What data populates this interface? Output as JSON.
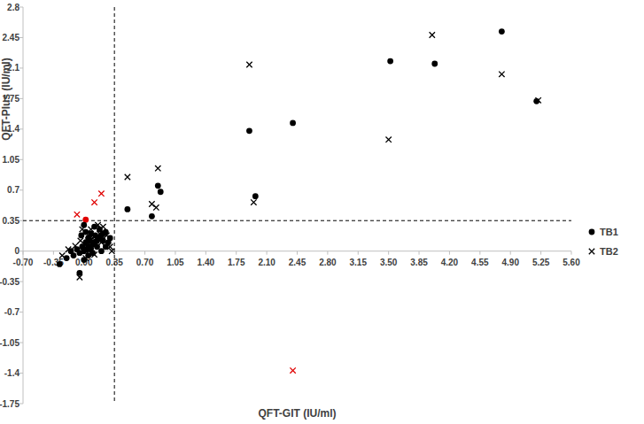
{
  "chart_data": {
    "type": "scatter",
    "x_label": "QFT-GIT (IU/ml)",
    "y_label": "QFT-Plus (IU/ml)",
    "xlim": [
      -0.7,
      5.6
    ],
    "ylim": [
      -1.75,
      2.8
    ],
    "xticks": [
      {
        "value": -0.7,
        "label": "-0.70"
      },
      {
        "value": -0.35,
        "label": "-0.35"
      },
      {
        "value": 0,
        "label": "0.00"
      },
      {
        "value": 0.35,
        "label": "0.35"
      },
      {
        "value": 0.7,
        "label": "0.70"
      },
      {
        "value": 1.05,
        "label": "1.05"
      },
      {
        "value": 1.4,
        "label": "1.40"
      },
      {
        "value": 1.75,
        "label": "1.75"
      },
      {
        "value": 2.1,
        "label": "2.10"
      },
      {
        "value": 2.45,
        "label": "2.45"
      },
      {
        "value": 2.8,
        "label": "2.80"
      },
      {
        "value": 3.15,
        "label": "3.15"
      },
      {
        "value": 3.5,
        "label": "3.50"
      },
      {
        "value": 3.85,
        "label": "3.85"
      },
      {
        "value": 4.2,
        "label": "4.20"
      },
      {
        "value": 4.55,
        "label": "4.55"
      },
      {
        "value": 4.9,
        "label": "4.90"
      },
      {
        "value": 5.25,
        "label": "5.25"
      },
      {
        "value": 5.6,
        "label": "5.60"
      }
    ],
    "yticks": [
      -1.75,
      -1.4,
      -1.05,
      -0.7,
      -0.35,
      0,
      0.35,
      0.7,
      1.05,
      1.4,
      1.75,
      2.1,
      2.45,
      2.8
    ],
    "cutoff": {
      "x": 0.35,
      "y": 0.35
    },
    "legend": "right",
    "grid": false,
    "series": [
      {
        "name": "TB1",
        "marker": "circle",
        "x": [
          4.8,
          3.52,
          4.03,
          5.2,
          2.4,
          1.9,
          1.97,
          0.85,
          0.88,
          0.78,
          0.5,
          0.02,
          0.0,
          0.03,
          0.05,
          0.08,
          0.1,
          0.12,
          0.15,
          0.18,
          0.2,
          0.22,
          0.25,
          0.05,
          0.08,
          0.02,
          -0.02,
          -0.05,
          -0.08,
          -0.12,
          -0.15,
          -0.2,
          -0.28,
          -0.05,
          0.0,
          0.05,
          0.1,
          0.15,
          0.18,
          0.12,
          0.28,
          0.3,
          0.25,
          0.02,
          -0.03,
          0.07,
          0.13,
          0.2,
          0.22,
          0.0
        ],
        "values": [
          2.52,
          2.18,
          2.15,
          1.72,
          1.47,
          1.38,
          0.63,
          0.75,
          0.68,
          0.4,
          0.48,
          0.36,
          0.0,
          0.02,
          0.05,
          0.03,
          0.08,
          0.1,
          0.12,
          0.15,
          0.18,
          0.2,
          0.22,
          0.15,
          0.2,
          0.1,
          0.05,
          -0.02,
          0.02,
          -0.05,
          0.0,
          -0.08,
          -0.15,
          -0.25,
          -0.1,
          -0.05,
          -0.02,
          0.05,
          0.25,
          0.28,
          0.1,
          0.15,
          0.05,
          0.22,
          0.18,
          0.12,
          0.18,
          0.0,
          0.12,
          0.3
        ],
        "colors": [
          "#000000",
          "#000000",
          "#000000",
          "#000000",
          "#000000",
          "#000000",
          "#000000",
          "#000000",
          "#000000",
          "#000000",
          "#000000",
          "#e00000",
          "#000000",
          "#000000",
          "#000000",
          "#000000",
          "#000000",
          "#000000",
          "#000000",
          "#000000",
          "#000000",
          "#000000",
          "#000000",
          "#000000",
          "#000000",
          "#000000",
          "#000000",
          "#000000",
          "#000000",
          "#000000",
          "#000000",
          "#000000",
          "#000000",
          "#000000",
          "#000000",
          "#000000",
          "#000000",
          "#000000",
          "#000000",
          "#000000",
          "#000000",
          "#000000",
          "#000000",
          "#000000",
          "#000000",
          "#000000",
          "#000000",
          "#000000",
          "#000000",
          "#000000"
        ]
      },
      {
        "name": "TB2",
        "marker": "x",
        "x": [
          4.0,
          1.9,
          4.8,
          5.22,
          3.5,
          1.95,
          0.85,
          0.5,
          0.78,
          0.83,
          -0.08,
          0.12,
          0.2,
          2.4,
          0.0,
          0.04,
          0.06,
          0.1,
          0.14,
          0.18,
          0.22,
          0.26,
          0.3,
          -0.04,
          -0.1,
          -0.18,
          -0.25,
          -0.05,
          0.02,
          0.08,
          0.16,
          0.12,
          0.2,
          0.32,
          -0.02,
          0.05
        ],
        "values": [
          2.48,
          2.14,
          2.03,
          1.73,
          1.28,
          0.56,
          0.95,
          0.85,
          0.54,
          0.5,
          0.42,
          0.56,
          0.66,
          -1.37,
          0.05,
          0.1,
          0.0,
          0.15,
          0.08,
          0.2,
          0.28,
          0.18,
          0.05,
          0.12,
          0.06,
          0.02,
          -0.05,
          -0.3,
          -0.08,
          0.25,
          0.3,
          -0.04,
          0.1,
          0.0,
          0.25,
          0.18
        ],
        "colors": [
          "#000000",
          "#000000",
          "#000000",
          "#000000",
          "#000000",
          "#000000",
          "#000000",
          "#000000",
          "#000000",
          "#000000",
          "#e00000",
          "#e00000",
          "#e00000",
          "#e00000",
          "#000000",
          "#000000",
          "#000000",
          "#000000",
          "#000000",
          "#000000",
          "#000000",
          "#000000",
          "#000000",
          "#000000",
          "#000000",
          "#000000",
          "#000000",
          "#000000",
          "#000000",
          "#000000",
          "#000000",
          "#000000",
          "#000000",
          "#000000",
          "#000000",
          "#000000"
        ]
      }
    ]
  }
}
